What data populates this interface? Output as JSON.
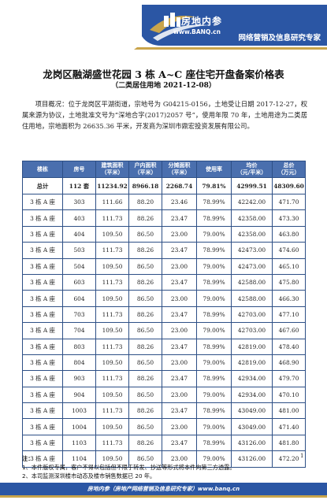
{
  "colors": {
    "brand_blue": "#2b56a4",
    "header_blue": "#4a6fae",
    "gold_accent": "#c9a44b",
    "logo_gold": "#b8913a"
  },
  "header": {
    "brand_name": "房地内参",
    "brand_site": "www.BANQ.cn",
    "brand_tagline": "网络营销及信息研究专家",
    "logo_icon": "building-logo-icon"
  },
  "title": "龙岗区融湖盛世花园 3 栋 A~C 座住宅开盘备案价格表",
  "subtitle": "（二类居住用地   2021-12-08）",
  "overview": "项目概况：位于龙岗区平湖街道，宗地号为 G04215-0156，土地受让日期 2017-12-27，权属来源为协议，土地批准文号为“深地合字(2017)2057 号”，使用年限 70 年，土地用途为二类居住用地，宗地面积为 26635.36 平米，开发商为深圳市鼎宏投资发展有限公司。",
  "table": {
    "headers": [
      "楼栋",
      "房号",
      "建筑面积（平米）",
      "户内面积（平米）",
      "分摊面积（平米）",
      "使用率",
      "均价（元/平米）",
      "总价（万元）"
    ],
    "total": {
      "label": "总计",
      "rooms": "112 套",
      "building_area": "11234.92",
      "inner_area": "8966.18",
      "shared_area": "2268.74",
      "usage_rate": "79.81%",
      "avg_price": "42999.51",
      "total_price": "48309.60"
    },
    "rows": [
      {
        "building": "3 栋 A 座",
        "room": "303",
        "building_area": "111.66",
        "inner_area": "88.20",
        "shared_area": "23.46",
        "usage_rate": "78.99%",
        "avg_price": "42242.00",
        "total_price": "471.70"
      },
      {
        "building": "3 栋 A 座",
        "room": "403",
        "building_area": "111.73",
        "inner_area": "88.26",
        "shared_area": "23.47",
        "usage_rate": "78.99%",
        "avg_price": "42358.00",
        "total_price": "473.30"
      },
      {
        "building": "3 栋 A 座",
        "room": "404",
        "building_area": "109.50",
        "inner_area": "86.50",
        "shared_area": "23.00",
        "usage_rate": "79.00%",
        "avg_price": "42358.00",
        "total_price": "463.80"
      },
      {
        "building": "3 栋 A 座",
        "room": "503",
        "building_area": "111.73",
        "inner_area": "88.26",
        "shared_area": "23.47",
        "usage_rate": "78.99%",
        "avg_price": "42473.00",
        "total_price": "474.60"
      },
      {
        "building": "3 栋 A 座",
        "room": "504",
        "building_area": "109.50",
        "inner_area": "86.50",
        "shared_area": "23.00",
        "usage_rate": "79.00%",
        "avg_price": "42473.00",
        "total_price": "465.10"
      },
      {
        "building": "3 栋 A 座",
        "room": "603",
        "building_area": "111.73",
        "inner_area": "88.26",
        "shared_area": "23.47",
        "usage_rate": "78.99%",
        "avg_price": "42588.00",
        "total_price": "475.80"
      },
      {
        "building": "3 栋 A 座",
        "room": "604",
        "building_area": "109.50",
        "inner_area": "86.50",
        "shared_area": "23.00",
        "usage_rate": "79.00%",
        "avg_price": "42588.00",
        "total_price": "466.30"
      },
      {
        "building": "3 栋 A 座",
        "room": "703",
        "building_area": "111.73",
        "inner_area": "88.26",
        "shared_area": "23.47",
        "usage_rate": "78.99%",
        "avg_price": "42703.00",
        "total_price": "477.10"
      },
      {
        "building": "3 栋 A 座",
        "room": "704",
        "building_area": "109.50",
        "inner_area": "86.50",
        "shared_area": "23.00",
        "usage_rate": "79.00%",
        "avg_price": "42703.00",
        "total_price": "467.60"
      },
      {
        "building": "3 栋 A 座",
        "room": "803",
        "building_area": "111.73",
        "inner_area": "88.26",
        "shared_area": "23.47",
        "usage_rate": "78.99%",
        "avg_price": "42819.00",
        "total_price": "478.40"
      },
      {
        "building": "3 栋 A 座",
        "room": "804",
        "building_area": "109.50",
        "inner_area": "86.50",
        "shared_area": "23.00",
        "usage_rate": "79.00%",
        "avg_price": "42819.00",
        "total_price": "468.90"
      },
      {
        "building": "3 栋 A 座",
        "room": "903",
        "building_area": "111.73",
        "inner_area": "88.26",
        "shared_area": "23.47",
        "usage_rate": "78.99%",
        "avg_price": "42934.00",
        "total_price": "479.70"
      },
      {
        "building": "3 栋 A 座",
        "room": "904",
        "building_area": "109.50",
        "inner_area": "86.50",
        "shared_area": "23.00",
        "usage_rate": "79.00%",
        "avg_price": "42934.00",
        "total_price": "470.10"
      },
      {
        "building": "3 栋 A 座",
        "room": "1003",
        "building_area": "111.73",
        "inner_area": "88.26",
        "shared_area": "23.47",
        "usage_rate": "78.99%",
        "avg_price": "43049.00",
        "total_price": "481.00"
      },
      {
        "building": "3 栋 A 座",
        "room": "1004",
        "building_area": "109.50",
        "inner_area": "86.50",
        "shared_area": "23.00",
        "usage_rate": "79.00%",
        "avg_price": "43049.00",
        "total_price": "471.40"
      },
      {
        "building": "3 栋 A 座",
        "room": "1103",
        "building_area": "111.73",
        "inner_area": "88.26",
        "shared_area": "23.47",
        "usage_rate": "78.99%",
        "avg_price": "43126.00",
        "total_price": "481.80"
      },
      {
        "building": "3 栋 A 座",
        "room": "1104",
        "building_area": "109.50",
        "inner_area": "86.50",
        "shared_area": "23.00",
        "usage_rate": "79.00%",
        "avg_price": "43126.00",
        "total_price": "472.20"
      }
    ]
  },
  "notes": {
    "heading": "注：",
    "items": [
      "1、本件版权专属，客户不得以包括但不限于转发、抄送等形式将本件向第三方透露。",
      "2、本司监测深圳楼市动态及楼市销售数据已 20 年。"
    ]
  },
  "page_number": "1",
  "footer": {
    "text": "房地内参（房地产网络营销及信息研究专家）www.banq.cn"
  }
}
